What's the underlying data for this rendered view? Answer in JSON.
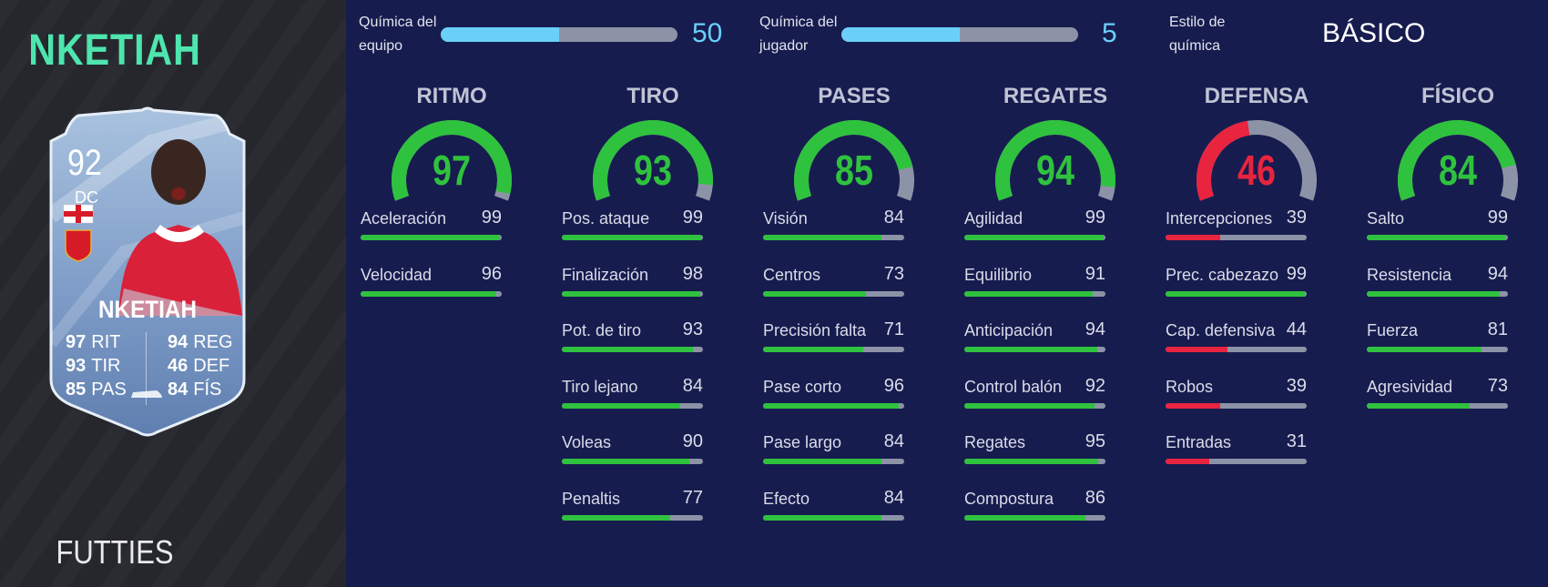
{
  "player": {
    "name": "NKETIAH",
    "card_type": "FUTTIES",
    "card": {
      "rating": "92",
      "position": "DC",
      "name": "NKETIAH",
      "stats": [
        {
          "value": "97",
          "label": "RIT"
        },
        {
          "value": "93",
          "label": "TIR"
        },
        {
          "value": "85",
          "label": "PAS"
        },
        {
          "value": "94",
          "label": "REG"
        },
        {
          "value": "46",
          "label": "DEF"
        },
        {
          "value": "84",
          "label": "FÍS"
        }
      ]
    }
  },
  "chemistry": {
    "team": {
      "label_line1": "Química del",
      "label_line2": "equipo",
      "value": "50",
      "fill": 0.5
    },
    "player": {
      "label_line1": "Química del",
      "label_line2": "jugador",
      "value": "5",
      "fill": 0.5
    },
    "style": {
      "label_line1": "Estilo de",
      "label_line2": "química",
      "value": "BÁSICO"
    }
  },
  "colors": {
    "good": "#2fc23e",
    "bad": "#e8243f",
    "chem": "#6ad0fa",
    "track": "#8d93a7"
  },
  "categories": [
    {
      "title": "RITMO",
      "value": 97,
      "attributes": [
        {
          "name": "Aceleración",
          "value": 99
        },
        {
          "name": "Velocidad",
          "value": 96
        }
      ]
    },
    {
      "title": "TIRO",
      "value": 93,
      "attributes": [
        {
          "name": "Pos. ataque",
          "value": 99
        },
        {
          "name": "Finalización",
          "value": 98
        },
        {
          "name": "Pot. de tiro",
          "value": 93
        },
        {
          "name": "Tiro lejano",
          "value": 84
        },
        {
          "name": "Voleas",
          "value": 90
        },
        {
          "name": "Penaltis",
          "value": 77
        }
      ]
    },
    {
      "title": "PASES",
      "value": 85,
      "attributes": [
        {
          "name": "Visión",
          "value": 84
        },
        {
          "name": "Centros",
          "value": 73
        },
        {
          "name": "Precisión falta",
          "value": 71
        },
        {
          "name": "Pase corto",
          "value": 96
        },
        {
          "name": "Pase largo",
          "value": 84
        },
        {
          "name": "Efecto",
          "value": 84
        }
      ]
    },
    {
      "title": "REGATES",
      "value": 94,
      "attributes": [
        {
          "name": "Agilidad",
          "value": 99
        },
        {
          "name": "Equilibrio",
          "value": 91
        },
        {
          "name": "Anticipación",
          "value": 94
        },
        {
          "name": "Control balón",
          "value": 92
        },
        {
          "name": "Regates",
          "value": 95
        },
        {
          "name": "Compostura",
          "value": 86
        }
      ]
    },
    {
      "title": "DEFENSA",
      "value": 46,
      "attributes": [
        {
          "name": "Intercepciones",
          "value": 39
        },
        {
          "name": "Prec. cabezazo",
          "value": 99
        },
        {
          "name": "Cap. defensiva",
          "value": 44
        },
        {
          "name": "Robos",
          "value": 39
        },
        {
          "name": "Entradas",
          "value": 31
        }
      ]
    },
    {
      "title": "FÍSICO",
      "value": 84,
      "attributes": [
        {
          "name": "Salto",
          "value": 99
        },
        {
          "name": "Resistencia",
          "value": 94
        },
        {
          "name": "Fuerza",
          "value": 81
        },
        {
          "name": "Agresividad",
          "value": 73
        }
      ]
    }
  ]
}
